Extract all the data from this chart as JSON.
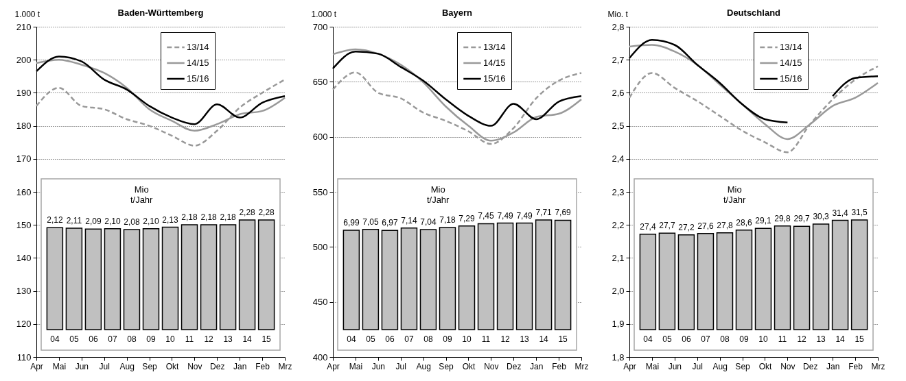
{
  "chart_data": [
    {
      "type": "line",
      "title": "Baden-Württemberg",
      "ylabel": "1.000 t",
      "categories": [
        "Apr",
        "Mai",
        "Jun",
        "Jul",
        "Aug",
        "Sep",
        "Okt",
        "Nov",
        "Dez",
        "Jan",
        "Feb",
        "Mrz"
      ],
      "series": [
        {
          "name": "13/14",
          "color": "#999999",
          "line_style": "dashed",
          "values": [
            186,
            191.5,
            186,
            185,
            182,
            180,
            177,
            174,
            178.5,
            185.5,
            190,
            194
          ]
        },
        {
          "name": "14/15",
          "color": "#999999",
          "line_style": "solid",
          "values": [
            199,
            200,
            198.5,
            196,
            191.5,
            185,
            181.5,
            178.5,
            180.5,
            183.5,
            184.5,
            188.5
          ]
        },
        {
          "name": "15/16",
          "color": "#000000",
          "line_style": "solid",
          "values": [
            196.5,
            201,
            199.5,
            194,
            191,
            186,
            182.5,
            180.5,
            186.5,
            182.5,
            187,
            189
          ]
        }
      ],
      "ylim": [
        110,
        210
      ],
      "yticks": [
        110,
        120,
        130,
        140,
        150,
        160,
        170,
        180,
        190,
        200,
        210
      ],
      "grid": "y",
      "legend": "top right"
    },
    {
      "type": "bar",
      "ylabel": "Mio t/Jahr",
      "categories": [
        "04",
        "05",
        "06",
        "07",
        "08",
        "09",
        "10",
        "11",
        "12",
        "13",
        "14",
        "15"
      ],
      "color": "#c0c0c0",
      "values": [
        2.12,
        2.11,
        2.09,
        2.1,
        2.08,
        2.1,
        2.13,
        2.18,
        2.18,
        2.18,
        2.28,
        2.28
      ],
      "value_labels": [
        "2,12",
        "2,11",
        "2,09",
        "2,10",
        "2,08",
        "2,10",
        "2,13",
        "2,18",
        "2,18",
        "2,18",
        "2,28",
        "2,28"
      ]
    },
    {
      "type": "line",
      "title": "Bayern",
      "ylabel": "1.000 t",
      "categories": [
        "Apr",
        "Mai",
        "Jun",
        "Jul",
        "Aug",
        "Sep",
        "Okt",
        "Nov",
        "Dez",
        "Jan",
        "Feb",
        "Mrz"
      ],
      "series": [
        {
          "name": "13/14",
          "color": "#999999",
          "line_style": "dashed",
          "values": [
            643,
            658.5,
            640,
            635,
            622,
            614.5,
            605,
            593.5,
            608,
            635,
            651,
            658
          ]
        },
        {
          "name": "14/15",
          "color": "#999999",
          "line_style": "solid",
          "values": [
            675,
            679.5,
            675.5,
            665.5,
            649.5,
            627.5,
            610,
            596.5,
            604,
            618,
            621,
            634
          ]
        },
        {
          "name": "15/16",
          "color": "#000000",
          "line_style": "solid",
          "values": [
            662,
            677.5,
            675.5,
            663.5,
            651,
            634,
            619,
            610,
            630,
            616,
            632,
            637
          ]
        }
      ],
      "ylim": [
        400,
        700
      ],
      "yticks": [
        400,
        450,
        500,
        550,
        600,
        650,
        700
      ],
      "grid": "y",
      "legend": "top right"
    },
    {
      "type": "bar",
      "ylabel": "Mio t/Jahr",
      "categories": [
        "04",
        "05",
        "06",
        "07",
        "08",
        "09",
        "10",
        "11",
        "12",
        "13",
        "14",
        "15"
      ],
      "color": "#c0c0c0",
      "values": [
        6.99,
        7.05,
        6.97,
        7.14,
        7.04,
        7.18,
        7.29,
        7.45,
        7.49,
        7.49,
        7.71,
        7.69
      ],
      "value_labels": [
        "6,99",
        "7,05",
        "6,97",
        "7,14",
        "7,04",
        "7,18",
        "7,29",
        "7,45",
        "7,49",
        "7,49",
        "7,71",
        "7,69"
      ]
    },
    {
      "type": "line",
      "title": "Deutschland",
      "ylabel": "Mio. t",
      "categories": [
        "Apr",
        "Mai",
        "Jun",
        "Jul",
        "Aug",
        "Sep",
        "Okt",
        "Nov",
        "Dez",
        "Jan",
        "Feb",
        "Mrz"
      ],
      "series": [
        {
          "name": "13/14",
          "color": "#999999",
          "line_style": "dashed",
          "values": [
            2.585,
            2.66,
            2.615,
            2.575,
            2.53,
            2.485,
            2.45,
            2.42,
            2.505,
            2.58,
            2.64,
            2.68
          ]
        },
        {
          "name": "14/15",
          "color": "#999999",
          "line_style": "solid",
          "values": [
            2.74,
            2.745,
            2.725,
            2.685,
            2.625,
            2.565,
            2.505,
            2.46,
            2.505,
            2.56,
            2.585,
            2.63
          ]
        },
        {
          "name": "15/16",
          "color": "#000000",
          "line_style": "solid",
          "values": [
            2.705,
            2.76,
            2.745,
            2.685,
            2.63,
            2.565,
            2.52,
            2.51,
            null,
            2.59,
            2.645,
            2.65
          ]
        }
      ],
      "ylim": [
        1.8,
        2.8
      ],
      "yticks": [
        {
          "value": 1.8,
          "label": "1,8"
        },
        {
          "value": 1.9,
          "label": "1,9"
        },
        {
          "value": 2.0,
          "label": "2,0"
        },
        {
          "value": 2.1,
          "label": "2,1"
        },
        {
          "value": 2.2,
          "label": "2,2"
        },
        {
          "value": 2.3,
          "label": "2,3"
        },
        {
          "value": 2.4,
          "label": "2,4"
        },
        {
          "value": 2.5,
          "label": "2,5"
        },
        {
          "value": 2.6,
          "label": "2,6"
        },
        {
          "value": 2.7,
          "label": "2,7"
        },
        {
          "value": 2.8,
          "label": "2,8"
        }
      ],
      "grid": "y",
      "legend": "top right"
    },
    {
      "type": "bar",
      "ylabel": "Mio t/Jahr",
      "categories": [
        "04",
        "05",
        "06",
        "07",
        "08",
        "09",
        "10",
        "11",
        "12",
        "13",
        "14",
        "15"
      ],
      "color": "#c0c0c0",
      "values": [
        27.4,
        27.7,
        27.2,
        27.6,
        27.8,
        28.6,
        29.1,
        29.8,
        29.7,
        30.3,
        31.4,
        31.5
      ],
      "value_labels": [
        "27,4",
        "27,7",
        "27,2",
        "27,6",
        "27,8",
        "28,6",
        "29,1",
        "29,8",
        "29,7",
        "30,3",
        "31,4",
        "31,5"
      ]
    }
  ]
}
